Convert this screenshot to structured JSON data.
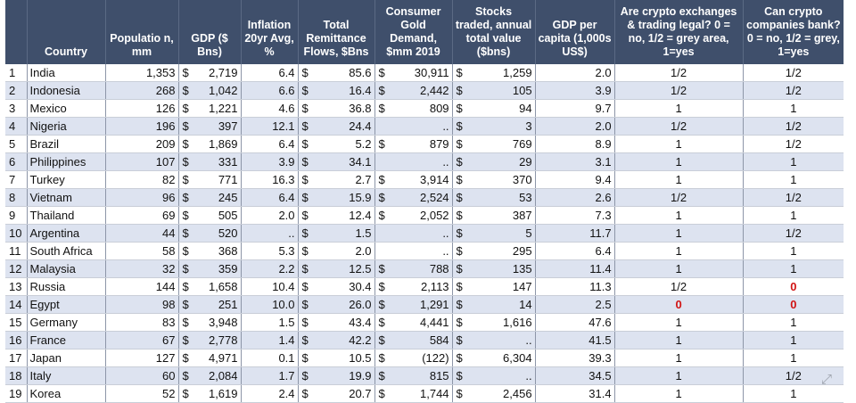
{
  "table": {
    "headers": {
      "num": "",
      "country": "Country",
      "population": "Populatio n, mm",
      "gdp": "GDP ($ Bns)",
      "inflation": "Inflation 20yr Avg, %",
      "remittance": "Total Remittance Flows, $Bns",
      "gold": "Consumer Gold Demand, $mm 2019",
      "stocks": "Stocks traded, annual total value ($bns)",
      "gdppc": "GDP per capita (1,000s US$)",
      "legal": "Are crypto exchanges & trading legal? 0 = no, 1/2 = grey area, 1=yes",
      "bank": "Can crypto companies bank? 0 = no, 1/2 = grey, 1=yes"
    },
    "currency_symbol": "$",
    "rows": [
      {
        "num": "1",
        "country": "India",
        "population": "1,353",
        "gdp": "2,719",
        "inflation": "6.4",
        "remittance": "85.6",
        "gold": "30,911",
        "stocks": "1,259",
        "gdppc": "2.0",
        "legal": "1/2",
        "bank": "1/2"
      },
      {
        "num": "2",
        "country": "Indonesia",
        "population": "268",
        "gdp": "1,042",
        "inflation": "6.6",
        "remittance": "16.4",
        "gold": "2,442",
        "stocks": "105",
        "gdppc": "3.9",
        "legal": "1/2",
        "bank": "1/2"
      },
      {
        "num": "3",
        "country": "Mexico",
        "population": "126",
        "gdp": "1,221",
        "inflation": "4.6",
        "remittance": "36.8",
        "gold": "809",
        "stocks": "94",
        "gdppc": "9.7",
        "legal": "1",
        "bank": "1"
      },
      {
        "num": "4",
        "country": "Nigeria",
        "population": "196",
        "gdp": "397",
        "inflation": "12.1",
        "remittance": "24.4",
        "gold": "..",
        "stocks": "3",
        "gdppc": "2.0",
        "legal": "1/2",
        "bank": "1/2"
      },
      {
        "num": "5",
        "country": "Brazil",
        "population": "209",
        "gdp": "1,869",
        "inflation": "6.4",
        "remittance": "5.2",
        "gold": "879",
        "stocks": "769",
        "gdppc": "8.9",
        "legal": "1",
        "bank": "1/2"
      },
      {
        "num": "6",
        "country": "Philippines",
        "population": "107",
        "gdp": "331",
        "inflation": "3.9",
        "remittance": "34.1",
        "gold": "..",
        "stocks": "29",
        "gdppc": "3.1",
        "legal": "1",
        "bank": "1"
      },
      {
        "num": "7",
        "country": "Turkey",
        "population": "82",
        "gdp": "771",
        "inflation": "16.3",
        "remittance": "2.7",
        "gold": "3,914",
        "stocks": "370",
        "gdppc": "9.4",
        "legal": "1",
        "bank": "1"
      },
      {
        "num": "8",
        "country": "Vietnam",
        "population": "96",
        "gdp": "245",
        "inflation": "6.4",
        "remittance": "15.9",
        "gold": "2,524",
        "stocks": "53",
        "gdppc": "2.6",
        "legal": "1/2",
        "bank": "1/2"
      },
      {
        "num": "9",
        "country": "Thailand",
        "population": "69",
        "gdp": "505",
        "inflation": "2.0",
        "remittance": "12.4",
        "gold": "2,052",
        "stocks": "387",
        "gdppc": "7.3",
        "legal": "1",
        "bank": "1"
      },
      {
        "num": "10",
        "country": "Argentina",
        "population": "44",
        "gdp": "520",
        "inflation": "..",
        "remittance": "1.5",
        "gold": "..",
        "stocks": "5",
        "gdppc": "11.7",
        "legal": "1",
        "bank": "1/2"
      },
      {
        "num": "11",
        "country": "South Africa",
        "population": "58",
        "gdp": "368",
        "inflation": "5.3",
        "remittance": "2.0",
        "gold": "..",
        "stocks": "295",
        "gdppc": "6.4",
        "legal": "1",
        "bank": "1"
      },
      {
        "num": "12",
        "country": "Malaysia",
        "population": "32",
        "gdp": "359",
        "inflation": "2.2",
        "remittance": "12.5",
        "gold": "788",
        "stocks": "135",
        "gdppc": "11.4",
        "legal": "1",
        "bank": "1"
      },
      {
        "num": "13",
        "country": "Russia",
        "population": "144",
        "gdp": "1,658",
        "inflation": "10.4",
        "remittance": "30.4",
        "gold": "2,113",
        "stocks": "147",
        "gdppc": "11.3",
        "legal": "1/2",
        "bank": "0"
      },
      {
        "num": "14",
        "country": "Egypt",
        "population": "98",
        "gdp": "251",
        "inflation": "10.0",
        "remittance": "26.0",
        "gold": "1,291",
        "stocks": "14",
        "gdppc": "2.5",
        "legal": "0",
        "bank": "0"
      },
      {
        "num": "15",
        "country": "Germany",
        "population": "83",
        "gdp": "3,948",
        "inflation": "1.5",
        "remittance": "43.4",
        "gold": "4,441",
        "stocks": "1,616",
        "gdppc": "47.6",
        "legal": "1",
        "bank": "1"
      },
      {
        "num": "16",
        "country": "France",
        "population": "67",
        "gdp": "2,778",
        "inflation": "1.4",
        "remittance": "42.2",
        "gold": "584",
        "stocks": "..",
        "gdppc": "41.5",
        "legal": "1",
        "bank": "1"
      },
      {
        "num": "17",
        "country": "Japan",
        "population": "127",
        "gdp": "4,971",
        "inflation": "0.1",
        "remittance": "10.5",
        "gold": "(122)",
        "stocks": "6,304",
        "gdppc": "39.3",
        "legal": "1",
        "bank": "1"
      },
      {
        "num": "18",
        "country": "Italy",
        "population": "60",
        "gdp": "2,084",
        "inflation": "1.7",
        "remittance": "19.9",
        "gold": "815",
        "stocks": "..",
        "gdppc": "34.5",
        "legal": "1",
        "bank": "1/2"
      },
      {
        "num": "19",
        "country": "Korea",
        "population": "52",
        "gdp": "1,619",
        "inflation": "2.4",
        "remittance": "20.7",
        "gold": "1,744",
        "stocks": "2,456",
        "gdppc": "31.4",
        "legal": "1",
        "bank": "1"
      }
    ]
  },
  "colors": {
    "header_bg": "#3f4f6b",
    "band": "#dde3f0",
    "zero_flag": "#d11414"
  },
  "icons": {
    "expand": "expand-arrows-icon"
  }
}
